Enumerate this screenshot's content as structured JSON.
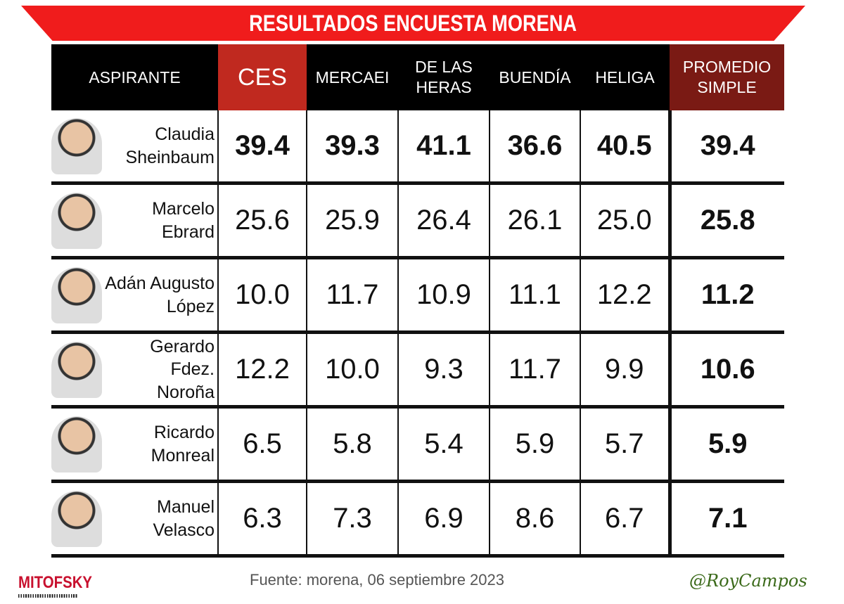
{
  "title": "RESULTADOS ENCUESTA MORENA",
  "chart_data": {
    "type": "table",
    "title": "RESULTADOS ENCUESTA MORENA",
    "columns": [
      "ASPIRANTE",
      "CES",
      "MERCAEI",
      "DE LAS HERAS",
      "BUENDÍA",
      "HELIGA",
      "PROMEDIO SIMPLE"
    ],
    "rows": [
      {
        "name": [
          "Claudia",
          "Sheinbaum"
        ],
        "values": [
          "39.4",
          "39.3",
          "41.1",
          "36.6",
          "40.5",
          "39.4"
        ]
      },
      {
        "name": [
          "Marcelo",
          "Ebrard"
        ],
        "values": [
          "25.6",
          "25.9",
          "26.4",
          "26.1",
          "25.0",
          "25.8"
        ]
      },
      {
        "name": [
          "Adán Augusto",
          "López"
        ],
        "values": [
          "10.0",
          "11.7",
          "10.9",
          "11.1",
          "12.2",
          "11.2"
        ]
      },
      {
        "name": [
          "Gerardo Fdez.",
          "Noroña"
        ],
        "values": [
          "12.2",
          "10.0",
          "9.3",
          "11.7",
          "9.9",
          "10.6"
        ]
      },
      {
        "name": [
          "Ricardo",
          "Monreal"
        ],
        "values": [
          "6.5",
          "5.8",
          "5.4",
          "5.9",
          "5.7",
          "5.9"
        ]
      },
      {
        "name": [
          "Manuel",
          "Velasco"
        ],
        "values": [
          "6.3",
          "7.3",
          "6.9",
          "8.6",
          "6.7",
          "7.1"
        ]
      }
    ]
  },
  "colors": {
    "banner": "#f01c1c",
    "ces_header": "#c0291f",
    "promedio_header": "#7a1a14",
    "signature": "#3b6a1a",
    "logo": "#c8102e"
  },
  "footer": {
    "source": "Fuente: morena,  06 septiembre  2023",
    "logo": "MITOFSKY",
    "signature": "@RoyCampos"
  }
}
